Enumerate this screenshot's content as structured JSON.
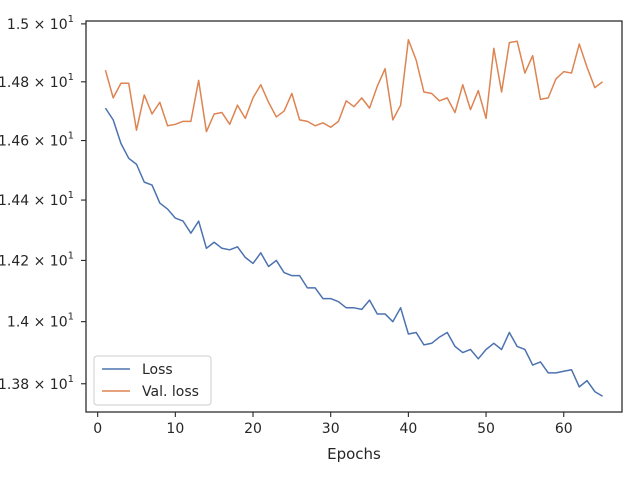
{
  "chart_data": {
    "type": "line",
    "title": "",
    "xlabel": "Epochs",
    "ylabel": "",
    "x_ticks": [
      0,
      10,
      20,
      30,
      40,
      50,
      60
    ],
    "xlim": [
      -1.5,
      67.5
    ],
    "ylim": [
      13.71,
      15.01
    ],
    "y_scale": "log",
    "y_tick_values": [
      13.8,
      14.0,
      14.2,
      14.4,
      14.6,
      14.8,
      15.0
    ],
    "y_tick_labels": [
      {
        "mantissa": "1.38",
        "exp": "1"
      },
      {
        "mantissa": "1.4",
        "exp": "1"
      },
      {
        "mantissa": "1.42",
        "exp": "1"
      },
      {
        "mantissa": "1.44",
        "exp": "1"
      },
      {
        "mantissa": "1.46",
        "exp": "1"
      },
      {
        "mantissa": "1.48",
        "exp": "1"
      },
      {
        "mantissa": "1.5",
        "exp": "1"
      }
    ],
    "legend_position": "lower-left",
    "grid": false,
    "series": [
      {
        "name": "Loss",
        "color": "#4c72b0",
        "x": [
          1,
          2,
          3,
          4,
          5,
          6,
          7,
          8,
          9,
          10,
          11,
          12,
          13,
          14,
          15,
          16,
          17,
          18,
          19,
          20,
          21,
          22,
          23,
          24,
          25,
          26,
          27,
          28,
          29,
          30,
          31,
          32,
          33,
          34,
          35,
          36,
          37,
          38,
          39,
          40,
          41,
          42,
          43,
          44,
          45,
          46,
          47,
          48,
          49,
          50,
          51,
          52,
          53,
          54,
          55,
          56,
          57,
          58,
          59,
          60,
          61,
          62,
          63,
          64,
          65
        ],
        "values": [
          14.71,
          14.67,
          14.59,
          14.54,
          14.52,
          14.46,
          14.45,
          14.39,
          14.37,
          14.34,
          14.33,
          14.29,
          14.33,
          14.24,
          14.26,
          14.24,
          14.235,
          14.245,
          14.21,
          14.19,
          14.225,
          14.18,
          14.2,
          14.16,
          14.15,
          14.15,
          14.11,
          14.11,
          14.075,
          14.075,
          14.065,
          14.045,
          14.045,
          14.04,
          14.07,
          14.025,
          14.025,
          14.0,
          14.045,
          13.96,
          13.965,
          13.925,
          13.93,
          13.95,
          13.965,
          13.92,
          13.9,
          13.91,
          13.88,
          13.91,
          13.93,
          13.91,
          13.965,
          13.92,
          13.91,
          13.86,
          13.87,
          13.835,
          13.835,
          13.84,
          13.845,
          13.79,
          13.81,
          13.775,
          13.76
        ]
      },
      {
        "name": "Val. loss",
        "color": "#dd8452",
        "x": [
          1,
          2,
          3,
          4,
          5,
          6,
          7,
          8,
          9,
          10,
          11,
          12,
          13,
          14,
          15,
          16,
          17,
          18,
          19,
          20,
          21,
          22,
          23,
          24,
          25,
          26,
          27,
          28,
          29,
          30,
          31,
          32,
          33,
          34,
          35,
          36,
          37,
          38,
          39,
          40,
          41,
          42,
          43,
          44,
          45,
          46,
          47,
          48,
          49,
          50,
          51,
          52,
          53,
          54,
          55,
          56,
          57,
          58,
          59,
          60,
          61,
          62,
          63,
          64,
          65
        ],
        "values": [
          14.84,
          14.745,
          14.795,
          14.795,
          14.635,
          14.755,
          14.69,
          14.73,
          14.65,
          14.655,
          14.665,
          14.665,
          14.805,
          14.63,
          14.69,
          14.695,
          14.655,
          14.72,
          14.675,
          14.745,
          14.79,
          14.73,
          14.68,
          14.7,
          14.76,
          14.67,
          14.665,
          14.65,
          14.66,
          14.645,
          14.665,
          14.735,
          14.715,
          14.745,
          14.71,
          14.785,
          14.845,
          14.67,
          14.72,
          14.945,
          14.875,
          14.765,
          14.76,
          14.735,
          14.745,
          14.695,
          14.79,
          14.705,
          14.77,
          14.675,
          14.915,
          14.765,
          14.935,
          14.94,
          14.83,
          14.89,
          14.74,
          14.745,
          14.81,
          14.835,
          14.83,
          14.93,
          14.85,
          14.78,
          14.8
        ]
      }
    ]
  }
}
